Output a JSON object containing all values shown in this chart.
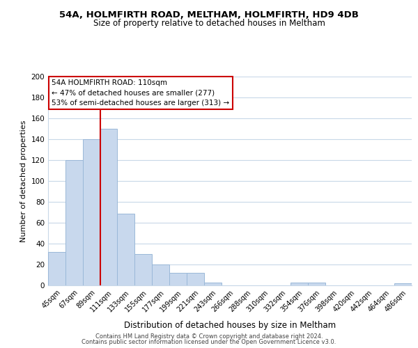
{
  "title1": "54A, HOLMFIRTH ROAD, MELTHAM, HOLMFIRTH, HD9 4DB",
  "title2": "Size of property relative to detached houses in Meltham",
  "xlabel": "Distribution of detached houses by size in Meltham",
  "ylabel": "Number of detached properties",
  "bar_labels": [
    "45sqm",
    "67sqm",
    "89sqm",
    "111sqm",
    "133sqm",
    "155sqm",
    "177sqm",
    "199sqm",
    "221sqm",
    "243sqm",
    "266sqm",
    "288sqm",
    "310sqm",
    "332sqm",
    "354sqm",
    "376sqm",
    "398sqm",
    "420sqm",
    "442sqm",
    "464sqm",
    "486sqm"
  ],
  "bar_values": [
    32,
    120,
    140,
    150,
    69,
    30,
    20,
    12,
    12,
    3,
    0,
    0,
    0,
    0,
    3,
    3,
    0,
    0,
    0,
    0,
    2
  ],
  "bar_color": "#c8d8ed",
  "bar_edge_color": "#9ab8d8",
  "vline_color": "#cc0000",
  "vline_index": 3,
  "annotation_line1": "54A HOLMFIRTH ROAD: 110sqm",
  "annotation_line2": "← 47% of detached houses are smaller (277)",
  "annotation_line3": "53% of semi-detached houses are larger (313) →",
  "ylim": [
    0,
    200
  ],
  "yticks": [
    0,
    20,
    40,
    60,
    80,
    100,
    120,
    140,
    160,
    180,
    200
  ],
  "footer1": "Contains HM Land Registry data © Crown copyright and database right 2024.",
  "footer2": "Contains public sector information licensed under the Open Government Licence v3.0.",
  "bg_color": "#ffffff",
  "grid_color": "#c8d8e8"
}
